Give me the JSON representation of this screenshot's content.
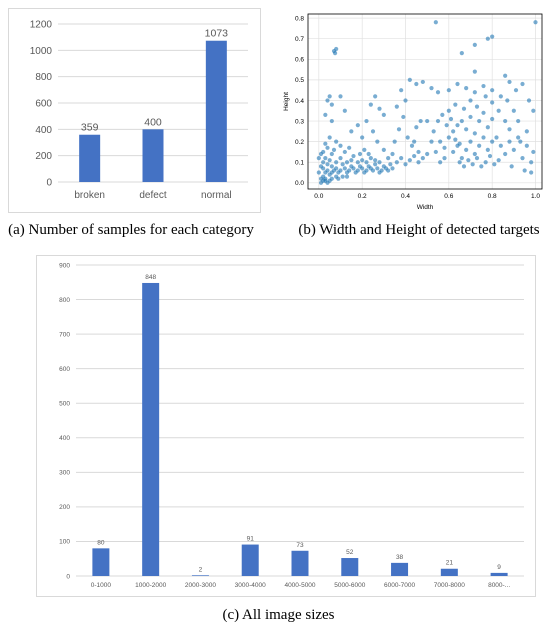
{
  "captions": {
    "a": "(a)  Number of samples for each category",
    "b": "(b)  Width and Height of detected targets",
    "c": "(c)  All image sizes"
  },
  "colors": {
    "bar": "#4472c4",
    "scatter": "#1f77b4",
    "grid": "#d9d9d9"
  },
  "chart_data": [
    {
      "id": "a",
      "type": "bar",
      "categories": [
        "broken",
        "defect",
        "normal"
      ],
      "values": [
        359,
        400,
        1073
      ],
      "data_labels": [
        "359",
        "400",
        "1073"
      ],
      "ylim": [
        0,
        1200
      ],
      "yticks": [
        "0",
        "200",
        "400",
        "600",
        "800",
        "1000",
        "1200"
      ],
      "grid": true
    },
    {
      "id": "b",
      "type": "scatter",
      "xlabel": "Width",
      "ylabel": "Height",
      "xlim": [
        -0.05,
        1.03
      ],
      "ylim": [
        -0.03,
        0.82
      ],
      "xticks": [
        "0.0",
        "0.2",
        "0.4",
        "0.6",
        "0.8",
        "1.0"
      ],
      "yticks": [
        "0.0",
        "0.1",
        "0.2",
        "0.3",
        "0.4",
        "0.5",
        "0.6",
        "0.7",
        "0.8"
      ],
      "grid": true,
      "points": [
        [
          0.02,
          0.03
        ],
        [
          0.03,
          0.05
        ],
        [
          0.01,
          0.02
        ],
        [
          0.04,
          0.06
        ],
        [
          0.05,
          0.04
        ],
        [
          0.02,
          0.07
        ],
        [
          0.03,
          0.01
        ],
        [
          0.06,
          0.05
        ],
        [
          0.07,
          0.06
        ],
        [
          0.04,
          0.09
        ],
        [
          0.05,
          0.11
        ],
        [
          0.03,
          0.12
        ],
        [
          0.06,
          0.08
        ],
        [
          0.08,
          0.07
        ],
        [
          0.09,
          0.05
        ],
        [
          0.1,
          0.06
        ],
        [
          0.12,
          0.07
        ],
        [
          0.11,
          0.09
        ],
        [
          0.13,
          0.05
        ],
        [
          0.14,
          0.06
        ],
        [
          0.15,
          0.08
        ],
        [
          0.16,
          0.07
        ],
        [
          0.17,
          0.05
        ],
        [
          0.18,
          0.06
        ],
        [
          0.19,
          0.08
        ],
        [
          0.2,
          0.07
        ],
        [
          0.21,
          0.05
        ],
        [
          0.22,
          0.06
        ],
        [
          0.23,
          0.08
        ],
        [
          0.24,
          0.07
        ],
        [
          0.25,
          0.06
        ],
        [
          0.26,
          0.09
        ],
        [
          0.27,
          0.07
        ],
        [
          0.28,
          0.05
        ],
        [
          0.29,
          0.06
        ],
        [
          0.3,
          0.08
        ],
        [
          0.31,
          0.07
        ],
        [
          0.32,
          0.06
        ],
        [
          0.33,
          0.09
        ],
        [
          0.34,
          0.07
        ],
        [
          0.18,
          0.1
        ],
        [
          0.2,
          0.11
        ],
        [
          0.22,
          0.1
        ],
        [
          0.24,
          0.12
        ],
        [
          0.26,
          0.11
        ],
        [
          0.28,
          0.1
        ],
        [
          0.15,
          0.11
        ],
        [
          0.13,
          0.1
        ],
        [
          0.1,
          0.12
        ],
        [
          0.08,
          0.1
        ],
        [
          0.02,
          0.15
        ],
        [
          0.04,
          0.17
        ],
        [
          0.06,
          0.14
        ],
        [
          0.03,
          0.19
        ],
        [
          0.05,
          0.22
        ],
        [
          0.07,
          0.16
        ],
        [
          0.08,
          0.2
        ],
        [
          0.1,
          0.18
        ],
        [
          0.12,
          0.15
        ],
        [
          0.14,
          0.17
        ],
        [
          0.04,
          0.4
        ],
        [
          0.05,
          0.42
        ],
        [
          0.06,
          0.38
        ],
        [
          0.03,
          0.33
        ],
        [
          0.06,
          0.3
        ],
        [
          0.07,
          0.64
        ],
        [
          0.075,
          0.63
        ],
        [
          0.08,
          0.65
        ],
        [
          0.1,
          0.42
        ],
        [
          0.12,
          0.35
        ],
        [
          0.15,
          0.25
        ],
        [
          0.18,
          0.28
        ],
        [
          0.2,
          0.22
        ],
        [
          0.22,
          0.3
        ],
        [
          0.25,
          0.25
        ],
        [
          0.27,
          0.2
        ],
        [
          0.3,
          0.33
        ],
        [
          0.28,
          0.36
        ],
        [
          0.26,
          0.42
        ],
        [
          0.24,
          0.38
        ],
        [
          0.32,
          0.12
        ],
        [
          0.34,
          0.14
        ],
        [
          0.36,
          0.1
        ],
        [
          0.38,
          0.12
        ],
        [
          0.4,
          0.09
        ],
        [
          0.42,
          0.11
        ],
        [
          0.44,
          0.13
        ],
        [
          0.46,
          0.1
        ],
        [
          0.48,
          0.12
        ],
        [
          0.5,
          0.14
        ],
        [
          0.35,
          0.2
        ],
        [
          0.37,
          0.26
        ],
        [
          0.39,
          0.32
        ],
        [
          0.41,
          0.22
        ],
        [
          0.43,
          0.18
        ],
        [
          0.45,
          0.27
        ],
        [
          0.47,
          0.3
        ],
        [
          0.36,
          0.37
        ],
        [
          0.38,
          0.45
        ],
        [
          0.4,
          0.4
        ],
        [
          0.42,
          0.5
        ],
        [
          0.45,
          0.48
        ],
        [
          0.48,
          0.49
        ],
        [
          0.52,
          0.46
        ],
        [
          0.55,
          0.44
        ],
        [
          0.5,
          0.3
        ],
        [
          0.53,
          0.25
        ],
        [
          0.56,
          0.2
        ],
        [
          0.58,
          0.17
        ],
        [
          0.6,
          0.22
        ],
        [
          0.62,
          0.15
        ],
        [
          0.64,
          0.18
        ],
        [
          0.66,
          0.12
        ],
        [
          0.68,
          0.16
        ],
        [
          0.7,
          0.2
        ],
        [
          0.72,
          0.14
        ],
        [
          0.74,
          0.18
        ],
        [
          0.76,
          0.22
        ],
        [
          0.78,
          0.16
        ],
        [
          0.8,
          0.2
        ],
        [
          0.62,
          0.25
        ],
        [
          0.64,
          0.28
        ],
        [
          0.66,
          0.3
        ],
        [
          0.68,
          0.26
        ],
        [
          0.7,
          0.32
        ],
        [
          0.72,
          0.24
        ],
        [
          0.74,
          0.3
        ],
        [
          0.76,
          0.34
        ],
        [
          0.78,
          0.27
        ],
        [
          0.8,
          0.31
        ],
        [
          0.6,
          0.35
        ],
        [
          0.63,
          0.38
        ],
        [
          0.67,
          0.36
        ],
        [
          0.7,
          0.4
        ],
        [
          0.73,
          0.37
        ],
        [
          0.77,
          0.42
        ],
        [
          0.8,
          0.39
        ],
        [
          0.83,
          0.35
        ],
        [
          0.86,
          0.3
        ],
        [
          0.88,
          0.26
        ],
        [
          0.6,
          0.45
        ],
        [
          0.64,
          0.48
        ],
        [
          0.68,
          0.46
        ],
        [
          0.72,
          0.44
        ],
        [
          0.76,
          0.47
        ],
        [
          0.8,
          0.45
        ],
        [
          0.84,
          0.42
        ],
        [
          0.87,
          0.4
        ],
        [
          0.9,
          0.35
        ],
        [
          0.92,
          0.3
        ],
        [
          0.82,
          0.22
        ],
        [
          0.84,
          0.18
        ],
        [
          0.86,
          0.14
        ],
        [
          0.88,
          0.2
        ],
        [
          0.9,
          0.16
        ],
        [
          0.92,
          0.22
        ],
        [
          0.94,
          0.12
        ],
        [
          0.96,
          0.18
        ],
        [
          0.98,
          0.1
        ],
        [
          0.99,
          0.15
        ],
        [
          0.65,
          0.1
        ],
        [
          0.67,
          0.08
        ],
        [
          0.69,
          0.11
        ],
        [
          0.71,
          0.09
        ],
        [
          0.73,
          0.12
        ],
        [
          0.75,
          0.08
        ],
        [
          0.77,
          0.1
        ],
        [
          0.79,
          0.13
        ],
        [
          0.81,
          0.09
        ],
        [
          0.83,
          0.11
        ],
        [
          0.56,
          0.1
        ],
        [
          0.58,
          0.12
        ],
        [
          0.54,
          0.15
        ],
        [
          0.52,
          0.2
        ],
        [
          0.55,
          0.3
        ],
        [
          0.57,
          0.33
        ],
        [
          0.59,
          0.28
        ],
        [
          0.61,
          0.31
        ],
        [
          0.63,
          0.21
        ],
        [
          0.65,
          0.19
        ],
        [
          0.54,
          0.78
        ],
        [
          0.66,
          0.63
        ],
        [
          0.72,
          0.67
        ],
        [
          0.78,
          0.7
        ],
        [
          0.8,
          0.71
        ],
        [
          0.72,
          0.54
        ],
        [
          0.86,
          0.52
        ],
        [
          0.88,
          0.49
        ],
        [
          0.91,
          0.45
        ],
        [
          0.94,
          0.48
        ],
        [
          0.97,
          0.4
        ],
        [
          0.99,
          0.35
        ],
        [
          1.0,
          0.78
        ],
        [
          0.96,
          0.25
        ],
        [
          0.93,
          0.2
        ],
        [
          0.89,
          0.08
        ],
        [
          0.95,
          0.06
        ],
        [
          0.98,
          0.05
        ],
        [
          0.44,
          0.2
        ],
        [
          0.46,
          0.15
        ],
        [
          0.01,
          0.0
        ],
        [
          0.02,
          0.01
        ],
        [
          0.03,
          0.02
        ],
        [
          0.04,
          0.0
        ],
        [
          0.05,
          0.01
        ],
        [
          0.06,
          0.02
        ],
        [
          0.08,
          0.03
        ],
        [
          0.09,
          0.02
        ],
        [
          0.11,
          0.03
        ],
        [
          0.13,
          0.03
        ],
        [
          0.0,
          0.05
        ],
        [
          0.01,
          0.08
        ],
        [
          0.02,
          0.1
        ],
        [
          0.0,
          0.12
        ],
        [
          0.01,
          0.14
        ],
        [
          0.16,
          0.13
        ],
        [
          0.19,
          0.14
        ],
        [
          0.21,
          0.16
        ],
        [
          0.23,
          0.14
        ],
        [
          0.3,
          0.16
        ]
      ]
    },
    {
      "id": "c",
      "type": "bar",
      "categories": [
        "0-1000",
        "1000-2000",
        "2000-3000",
        "3000-4000",
        "4000-5000",
        "5000-6000",
        "6000-7000",
        "7000-8000",
        "8000-..."
      ],
      "values": [
        80,
        848,
        2,
        91,
        73,
        52,
        38,
        21,
        9
      ],
      "data_labels": [
        "80",
        "848",
        "2",
        "91",
        "73",
        "52",
        "38",
        "21",
        "9"
      ],
      "ylim": [
        0,
        900
      ],
      "yticks": [
        "0",
        "100",
        "200",
        "300",
        "400",
        "500",
        "600",
        "700",
        "800",
        "900"
      ],
      "grid": true
    }
  ]
}
